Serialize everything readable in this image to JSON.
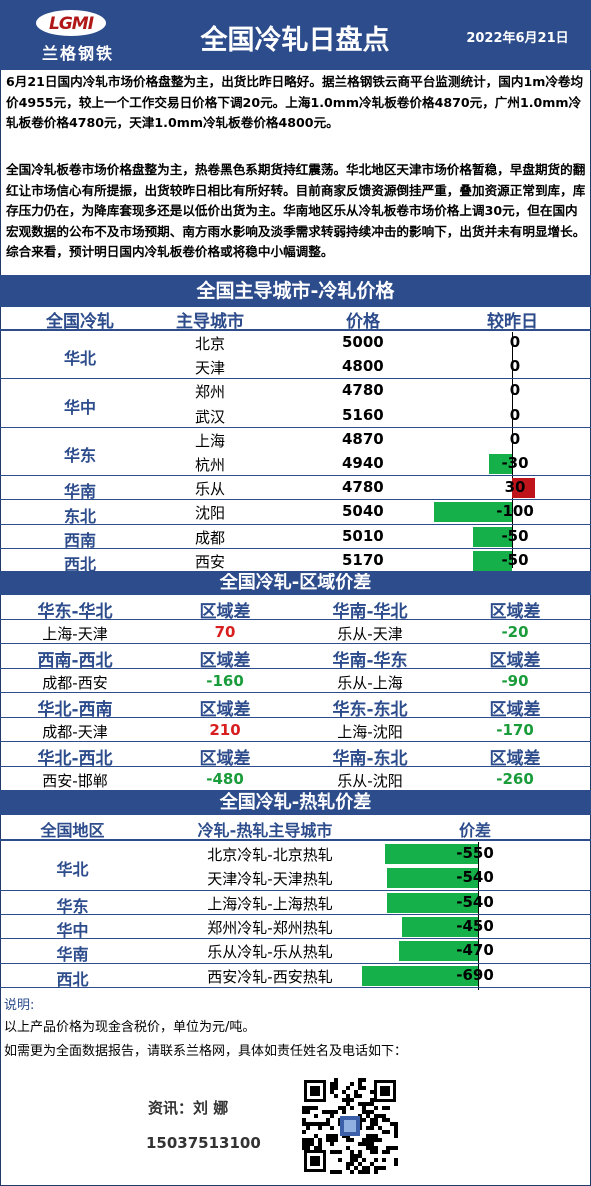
{
  "header": {
    "logo_text": "LGMI",
    "logo_cn": "兰格钢铁",
    "title": "全国冷轧日盘点",
    "date": "2022年6月21日"
  },
  "summary": {
    "para1": "6月21日国内冷轧市场价格盘整为主，出货比昨日略好。据兰格钢铁云商平台监测统计，国内1m冷卷均价4955元，较上一个工作交易日价格下调20元。上海1.0mm冷轧板卷价格4870元，广州1.0mm冷轧板卷价格4780元，天津1.0mm冷轧板卷价格4800元。",
    "para2": "全国冷轧板卷市场价格盘整为主，热卷黑色系期货持红震荡。华北地区天津市场价格暂稳，早盘期货的翻红让市场信心有所提振，出货较昨日相比有所好转。目前商家反馈资源倒挂严重，叠加资源正常到库，库存压力仍在，为降库套现多还是以低价出货为主。华南地区乐从冷轧板卷市场价格上调30元，但在国内宏观数据的公布不及市场预期、南方雨水影响及淡季需求转弱持续冲击的影响下，出货并未有明显增长。综合来看，预计明日国内冷轧板卷价格或将稳中小幅调整。"
  },
  "price_section": {
    "title": "全国主导城市-冷轧价格",
    "headers": [
      "全国冷轧",
      "主导城市",
      "价格",
      "较昨日"
    ],
    "groups": [
      {
        "region": "华北",
        "rows": [
          {
            "city": "北京",
            "price": "5000",
            "change": 0
          },
          {
            "city": "天津",
            "price": "4800",
            "change": 0
          }
        ]
      },
      {
        "region": "华中",
        "rows": [
          {
            "city": "郑州",
            "price": "4780",
            "change": 0
          },
          {
            "city": "武汉",
            "price": "5160",
            "change": 0
          }
        ]
      },
      {
        "region": "华东",
        "rows": [
          {
            "city": "上海",
            "price": "4870",
            "change": 0
          },
          {
            "city": "杭州",
            "price": "4940",
            "change": -30
          }
        ]
      },
      {
        "region": "华南",
        "rows": [
          {
            "city": "乐从",
            "price": "4780",
            "change": 30
          }
        ]
      },
      {
        "region": "东北",
        "rows": [
          {
            "city": "沈阳",
            "price": "5040",
            "change": -100
          }
        ]
      },
      {
        "region": "西南",
        "rows": [
          {
            "city": "成都",
            "price": "5010",
            "change": -50
          }
        ]
      },
      {
        "region": "西北",
        "rows": [
          {
            "city": "西安",
            "price": "5170",
            "change": -50
          }
        ]
      }
    ]
  },
  "spread_section": {
    "title": "全国冷轧-区域价差",
    "col_label": "区域差",
    "pairs": [
      {
        "left_title": "华东-华北",
        "left_name": "上海-天津",
        "left_val": "70",
        "right_title": "华南-华北",
        "right_name": "乐从-天津",
        "right_val": "-20"
      },
      {
        "left_title": "西南-西北",
        "left_name": "成都-西安",
        "left_val": "-160",
        "right_title": "华南-华东",
        "right_name": "乐从-上海",
        "right_val": "-90"
      },
      {
        "left_title": "华北-西南",
        "left_name": "成都-天津",
        "left_val": "210",
        "right_title": "华东-东北",
        "right_name": "上海-沈阳",
        "right_val": "-170"
      },
      {
        "left_title": "华北-西北",
        "left_name": "西安-邯郸",
        "left_val": "-480",
        "right_title": "华南-东北",
        "right_name": "乐从-沈阳",
        "right_val": "-260"
      }
    ]
  },
  "hotrolled_section": {
    "title": "全国冷轧-热轧价差",
    "headers": [
      "全国地区",
      "冷轧-热轧主导城市",
      "价差"
    ],
    "regions": [
      {
        "region": "华北",
        "rows": [
          {
            "name": "北京冷轧-北京热轧",
            "value": -550
          },
          {
            "name": "天津冷轧-天津热轧",
            "value": -540
          }
        ]
      },
      {
        "region": "华东",
        "rows": [
          {
            "name": "上海冷轧-上海热轧",
            "value": -540
          }
        ]
      },
      {
        "region": "华中",
        "rows": [
          {
            "name": "郑州冷轧-郑州热轧",
            "value": -450
          }
        ]
      },
      {
        "region": "华南",
        "rows": [
          {
            "name": "乐从冷轧-乐从热轧",
            "value": -470
          }
        ]
      },
      {
        "region": "西北",
        "rows": [
          {
            "name": "西安冷轧-西安热轧",
            "value": -690
          }
        ]
      }
    ]
  },
  "notes": {
    "label": "说明:",
    "line1": "以上产品价格为现金含税价，单位为元/吨。",
    "line2": "如需更为全面数据报告，请联系兰格网，具体如责任姓名及电话如下：",
    "contact": "资讯：刘 娜",
    "phone": "15037513100"
  },
  "colors": {
    "navy": "#2d4c8c",
    "up": "#c0141c",
    "down": "#16b04a"
  }
}
